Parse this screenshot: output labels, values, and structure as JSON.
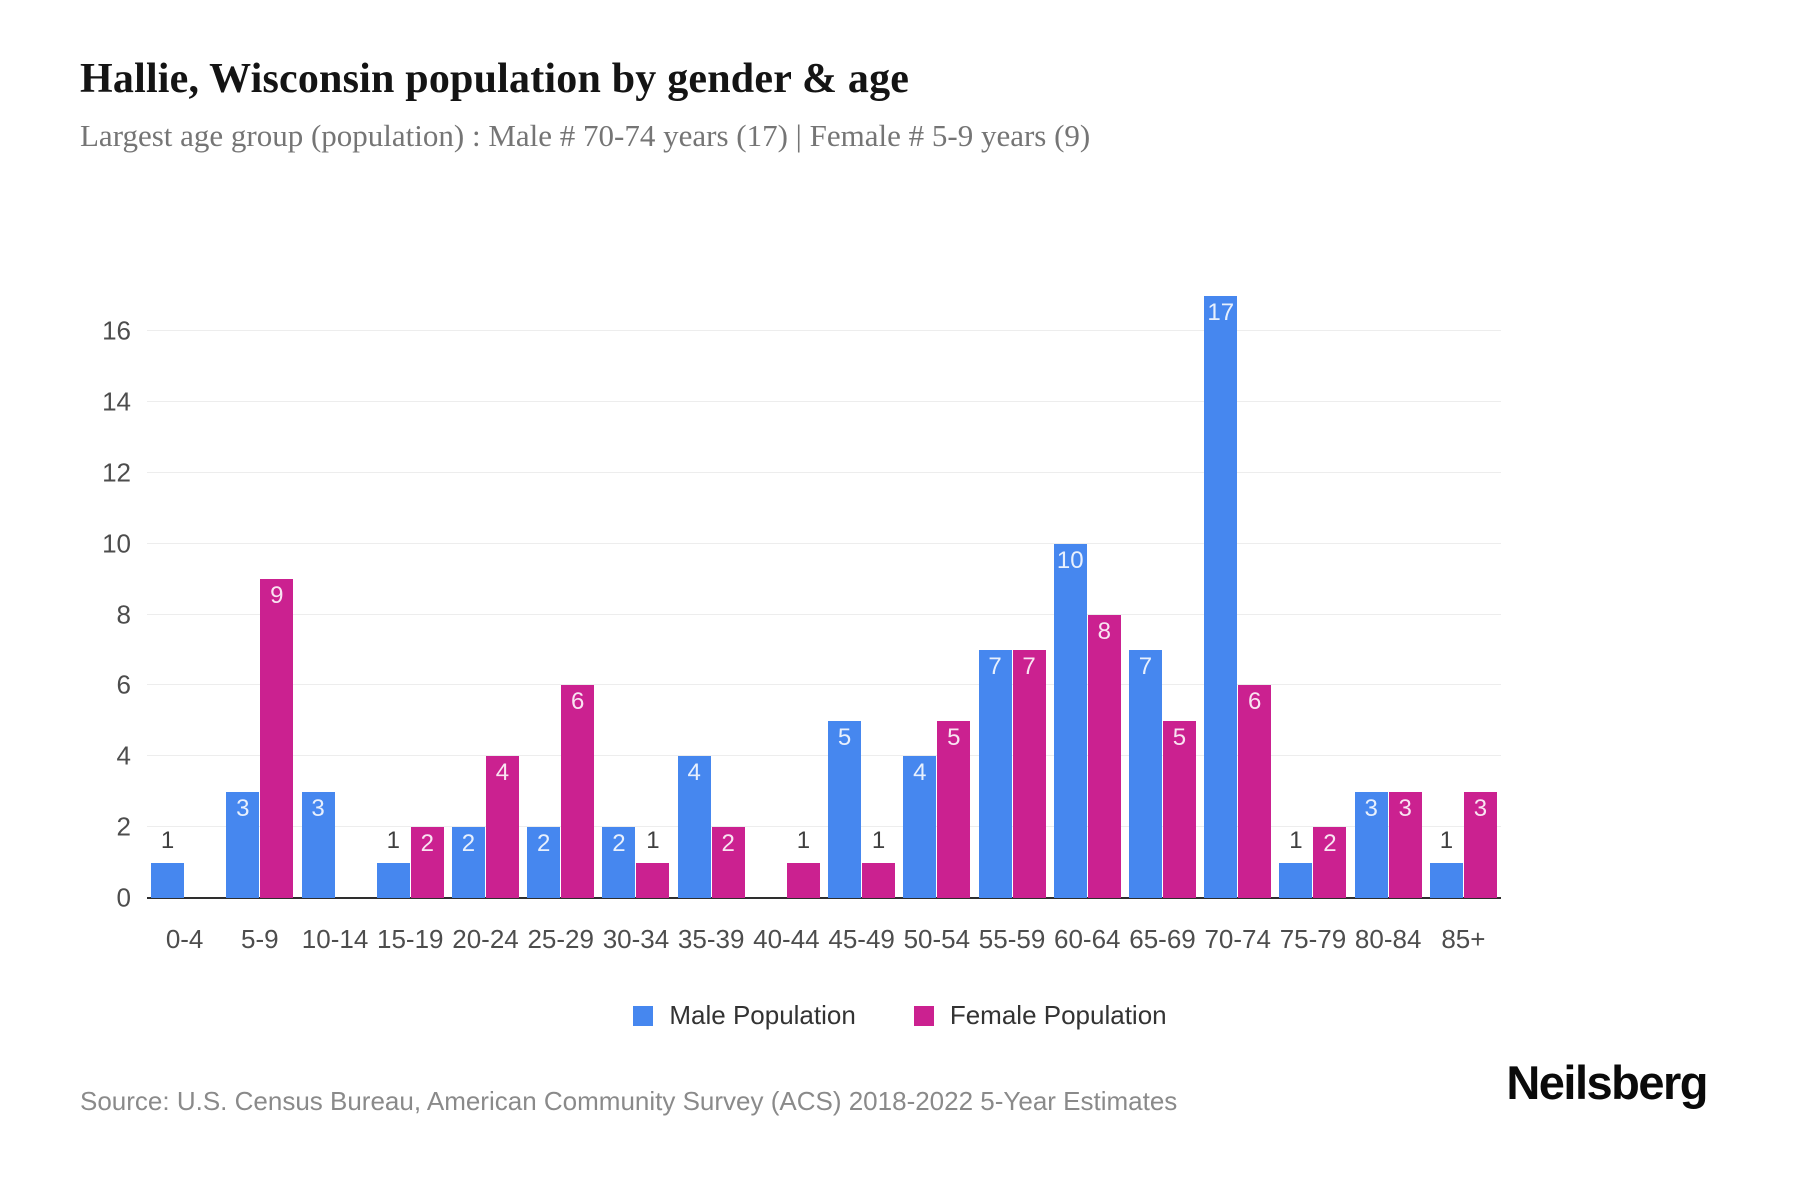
{
  "header": {
    "title": "Hallie, Wisconsin population by gender & age",
    "subtitle": "Largest age group (population) : Male # 70-74 years (17) | Female # 5-9 years (9)"
  },
  "chart_data": {
    "type": "bar",
    "title": "Hallie, Wisconsin population by gender & age",
    "categories": [
      "0-4",
      "5-9",
      "10-14",
      "15-19",
      "20-24",
      "25-29",
      "30-34",
      "35-39",
      "40-44",
      "45-49",
      "50-54",
      "55-59",
      "60-64",
      "65-69",
      "70-74",
      "75-79",
      "80-84",
      "85+"
    ],
    "series": [
      {
        "name": "Male Population",
        "color": "#4687ef",
        "values": [
          1,
          3,
          3,
          1,
          2,
          2,
          2,
          4,
          0,
          5,
          4,
          7,
          10,
          7,
          17,
          1,
          3,
          1
        ]
      },
      {
        "name": "Female Population",
        "color": "#cb2190",
        "values": [
          0,
          9,
          0,
          2,
          4,
          6,
          1,
          2,
          1,
          1,
          5,
          7,
          8,
          5,
          6,
          2,
          3,
          3
        ]
      }
    ],
    "xlabel": "",
    "ylabel": "",
    "ylim": [
      0,
      17.5
    ],
    "yticks": [
      0,
      2,
      4,
      6,
      8,
      10,
      12,
      14,
      16
    ],
    "grid": true,
    "legend_position": "bottom",
    "value_labels": true
  },
  "colors": {
    "male": "#4687ef",
    "female": "#cb2190",
    "gridline": "#ededed",
    "axis_line": "#2e2e2e",
    "tick_text": "#4d4d4d",
    "label_in_bar": "rgba(255,255,255,0.88)",
    "label_above_bar": "#3f3f3f"
  },
  "legend": {
    "items": [
      {
        "label": "Male Population",
        "color": "#4687ef"
      },
      {
        "label": "Female Population",
        "color": "#cb2190"
      }
    ]
  },
  "footer": {
    "source": "Source: U.S. Census Bureau, American Community Survey (ACS) 2018-2022 5-Year Estimates",
    "brand": "Neilsberg"
  }
}
